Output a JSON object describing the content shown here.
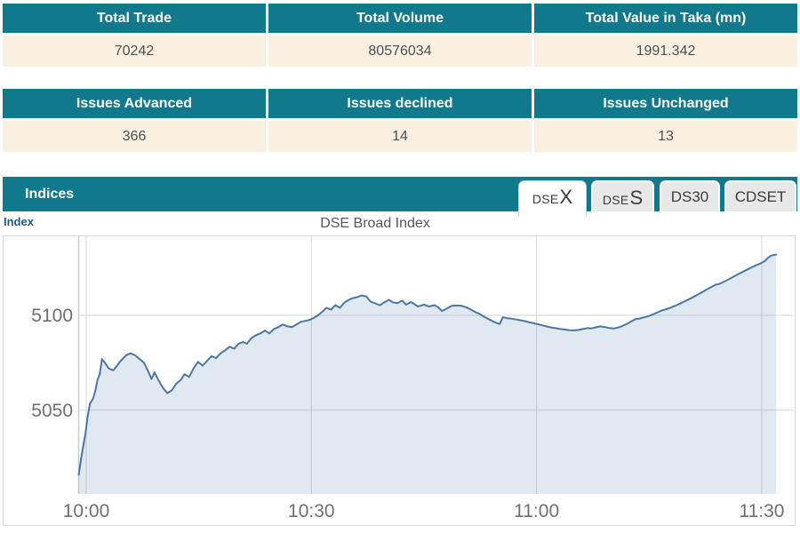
{
  "colors": {
    "teal": "#10798b",
    "cream": "#faf0e2",
    "line": "#4a76a8",
    "fill": "rgba(74,118,168,0.17)",
    "grid": "#d6d6d6",
    "axis_line": "#c7ccd1",
    "tick_text": "#6f6f6f"
  },
  "tables": [
    {
      "headers": [
        "Total Trade",
        "Total Volume",
        "Total Value in Taka (mn)"
      ],
      "values": [
        "70242",
        "80576034",
        "1991.342"
      ]
    },
    {
      "headers": [
        "Issues Advanced",
        "Issues declined",
        "Issues Unchanged"
      ],
      "values": [
        "366",
        "14",
        "13"
      ]
    }
  ],
  "indices_panel": {
    "title": "Indices",
    "tabs": [
      {
        "name": "DSEX",
        "small": "DSE",
        "big": "X",
        "active": true
      },
      {
        "name": "DSES",
        "small": "DSE",
        "big": "S",
        "active": false
      },
      {
        "name": "DS30",
        "label": "DS30",
        "active": false
      },
      {
        "name": "CDSET",
        "label": "CDSET",
        "active": false
      }
    ],
    "axis_label": "Index",
    "chart_title": "DSE Broad Index"
  },
  "chart_data": {
    "type": "area",
    "title": "DSE Broad Index",
    "series_name": "DSEX",
    "x_unit": "minutes after 10:00",
    "x_ticks": [
      {
        "label": "10:00",
        "minute": 0
      },
      {
        "label": "10:30",
        "minute": 30
      },
      {
        "label": "11:00",
        "minute": 60
      },
      {
        "label": "11:30",
        "minute": 90
      }
    ],
    "y_ticks": [
      5100,
      5050
    ],
    "y_plot_range": [
      5006,
      5141
    ],
    "x_plot_range": [
      -1,
      92
    ],
    "grid": true,
    "points": [
      [
        -1.0,
        5016
      ],
      [
        -0.7,
        5024
      ],
      [
        -0.4,
        5031
      ],
      [
        -0.1,
        5038
      ],
      [
        0.2,
        5047
      ],
      [
        0.5,
        5053.5
      ],
      [
        0.9,
        5056
      ],
      [
        1.2,
        5060
      ],
      [
        1.5,
        5066
      ],
      [
        1.8,
        5069
      ],
      [
        2.1,
        5077
      ],
      [
        2.5,
        5075
      ],
      [
        3.0,
        5072
      ],
      [
        3.6,
        5071
      ],
      [
        4.0,
        5073
      ],
      [
        4.6,
        5076
      ],
      [
        5.3,
        5079
      ],
      [
        5.9,
        5080
      ],
      [
        6.5,
        5079
      ],
      [
        7.1,
        5077
      ],
      [
        7.7,
        5075
      ],
      [
        8.2,
        5071
      ],
      [
        8.7,
        5066.5
      ],
      [
        9.1,
        5070
      ],
      [
        9.6,
        5066
      ],
      [
        10.2,
        5062
      ],
      [
        10.8,
        5059
      ],
      [
        11.4,
        5060.5
      ],
      [
        12.0,
        5064
      ],
      [
        12.6,
        5066
      ],
      [
        13.1,
        5069
      ],
      [
        13.7,
        5067.5
      ],
      [
        14.3,
        5072
      ],
      [
        14.9,
        5075.5
      ],
      [
        15.5,
        5073.5
      ],
      [
        16.1,
        5076
      ],
      [
        16.7,
        5078.5
      ],
      [
        17.3,
        5077.5
      ],
      [
        17.9,
        5080
      ],
      [
        18.5,
        5081.5
      ],
      [
        19.1,
        5083.5
      ],
      [
        19.7,
        5082.5
      ],
      [
        20.3,
        5085
      ],
      [
        20.9,
        5086
      ],
      [
        21.4,
        5085
      ],
      [
        22.0,
        5088
      ],
      [
        22.6,
        5089.5
      ],
      [
        23.2,
        5090.5
      ],
      [
        23.8,
        5092
      ],
      [
        24.4,
        5090.5
      ],
      [
        25.0,
        5092.8
      ],
      [
        25.6,
        5093.8
      ],
      [
        26.2,
        5095.2
      ],
      [
        26.8,
        5094.2
      ],
      [
        27.4,
        5093.8
      ],
      [
        28.0,
        5095.2
      ],
      [
        28.6,
        5096.6
      ],
      [
        29.1,
        5097
      ],
      [
        29.7,
        5097.5
      ],
      [
        30.2,
        5098.4
      ],
      [
        30.8,
        5099.8
      ],
      [
        31.4,
        5101.7
      ],
      [
        32.0,
        5104
      ],
      [
        32.6,
        5103
      ],
      [
        33.2,
        5105.4
      ],
      [
        33.8,
        5104
      ],
      [
        34.4,
        5106.8
      ],
      [
        35.0,
        5108.2
      ],
      [
        35.5,
        5109.1
      ],
      [
        36.1,
        5109.6
      ],
      [
        36.7,
        5110.5
      ],
      [
        37.3,
        5110
      ],
      [
        37.9,
        5107.2
      ],
      [
        38.5,
        5106.3
      ],
      [
        39.1,
        5105.4
      ],
      [
        39.7,
        5106.8
      ],
      [
        40.3,
        5108.2
      ],
      [
        40.9,
        5106.8
      ],
      [
        41.5,
        5106.5
      ],
      [
        42.1,
        5107.8
      ],
      [
        42.6,
        5105.6
      ],
      [
        43.3,
        5107
      ],
      [
        44.2,
        5104.7
      ],
      [
        45.0,
        5105.6
      ],
      [
        45.7,
        5104.7
      ],
      [
        46.4,
        5105.4
      ],
      [
        46.9,
        5104.2
      ],
      [
        47.4,
        5102.3
      ],
      [
        48.0,
        5103.5
      ],
      [
        48.7,
        5105
      ],
      [
        49.4,
        5105.2
      ],
      [
        50.0,
        5105
      ],
      [
        50.6,
        5104.3
      ],
      [
        51.2,
        5103.2
      ],
      [
        51.8,
        5101.8
      ],
      [
        52.4,
        5100.8
      ],
      [
        53.0,
        5099.3
      ],
      [
        53.6,
        5098
      ],
      [
        54.2,
        5096.8
      ],
      [
        54.8,
        5095.8
      ],
      [
        55.1,
        5095.5
      ],
      [
        55.5,
        5099
      ],
      [
        56.1,
        5098.5
      ],
      [
        56.7,
        5098.2
      ],
      [
        57.3,
        5097.8
      ],
      [
        57.9,
        5097.4
      ],
      [
        58.5,
        5096.9
      ],
      [
        59.1,
        5096.3
      ],
      [
        59.7,
        5095.8
      ],
      [
        60.2,
        5095.3
      ],
      [
        60.8,
        5094.7
      ],
      [
        61.4,
        5094.1
      ],
      [
        62.0,
        5093.6
      ],
      [
        62.6,
        5093.2
      ],
      [
        63.2,
        5092.8
      ],
      [
        63.8,
        5092.5
      ],
      [
        64.4,
        5092.2
      ],
      [
        65.0,
        5092.1
      ],
      [
        65.6,
        5092.3
      ],
      [
        66.2,
        5092.8
      ],
      [
        66.8,
        5093.3
      ],
      [
        67.3,
        5093.1
      ],
      [
        67.9,
        5093.7
      ],
      [
        68.5,
        5094.2
      ],
      [
        69.1,
        5093.8
      ],
      [
        69.7,
        5093.3
      ],
      [
        70.3,
        5093.1
      ],
      [
        70.9,
        5093.6
      ],
      [
        71.5,
        5094.5
      ],
      [
        72.1,
        5095.6
      ],
      [
        72.7,
        5097
      ],
      [
        73.2,
        5098
      ],
      [
        73.7,
        5098.3
      ],
      [
        74.3,
        5098.9
      ],
      [
        74.9,
        5099.6
      ],
      [
        75.5,
        5100.5
      ],
      [
        76.1,
        5101.6
      ],
      [
        76.7,
        5102.6
      ],
      [
        77.3,
        5103.3
      ],
      [
        77.9,
        5104.1
      ],
      [
        78.5,
        5105.1
      ],
      [
        79.1,
        5106.2
      ],
      [
        79.7,
        5107.3
      ],
      [
        80.3,
        5108.5
      ],
      [
        80.9,
        5109.7
      ],
      [
        81.5,
        5111
      ],
      [
        82.1,
        5112.3
      ],
      [
        82.7,
        5113.7
      ],
      [
        83.3,
        5115
      ],
      [
        83.9,
        5116.2
      ],
      [
        84.4,
        5116.6
      ],
      [
        85.0,
        5117.8
      ],
      [
        85.6,
        5119
      ],
      [
        86.2,
        5120.3
      ],
      [
        86.8,
        5121.6
      ],
      [
        87.4,
        5122.8
      ],
      [
        88.0,
        5124
      ],
      [
        88.6,
        5125.2
      ],
      [
        89.2,
        5126.3
      ],
      [
        89.8,
        5127.3
      ],
      [
        90.4,
        5128.6
      ],
      [
        90.8,
        5130.2
      ],
      [
        91.2,
        5131.4
      ],
      [
        91.5,
        5131.7
      ],
      [
        91.9,
        5132
      ]
    ]
  }
}
